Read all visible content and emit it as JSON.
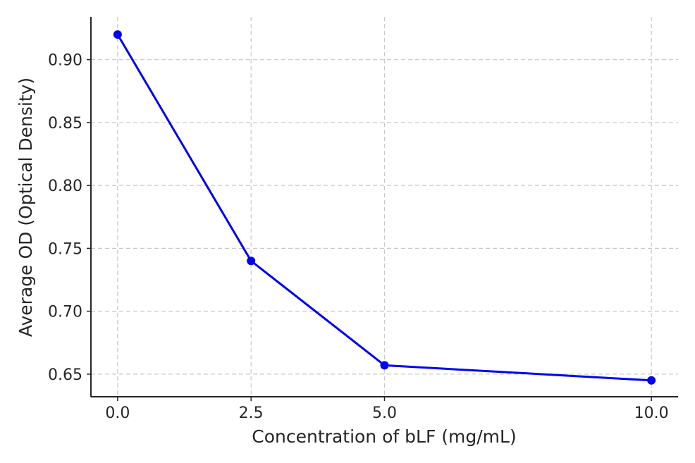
{
  "chart_data": {
    "type": "line",
    "title": "",
    "xlabel": "Concentration of bLF (mg/mL)",
    "ylabel": "Average OD (Optical Density)",
    "x": [
      0.0,
      2.5,
      5.0,
      10.0
    ],
    "x_tick_values": [
      0.0,
      2.5,
      5.0,
      10.0
    ],
    "x_tick_labels": [
      "0.0",
      "2.5",
      "5.0",
      "10.0"
    ],
    "y_tick_values": [
      0.65,
      0.7,
      0.75,
      0.8,
      0.85,
      0.9
    ],
    "y_tick_labels": [
      "0.65",
      "0.70",
      "0.75",
      "0.80",
      "0.85",
      "0.90"
    ],
    "xlim": [
      -0.5,
      10.5
    ],
    "ylim": [
      0.632,
      0.934
    ],
    "grid": true,
    "series": [
      {
        "values": [
          0.92,
          0.74,
          0.657,
          0.645
        ],
        "color": "#0000ee",
        "marker": "circle"
      }
    ]
  }
}
